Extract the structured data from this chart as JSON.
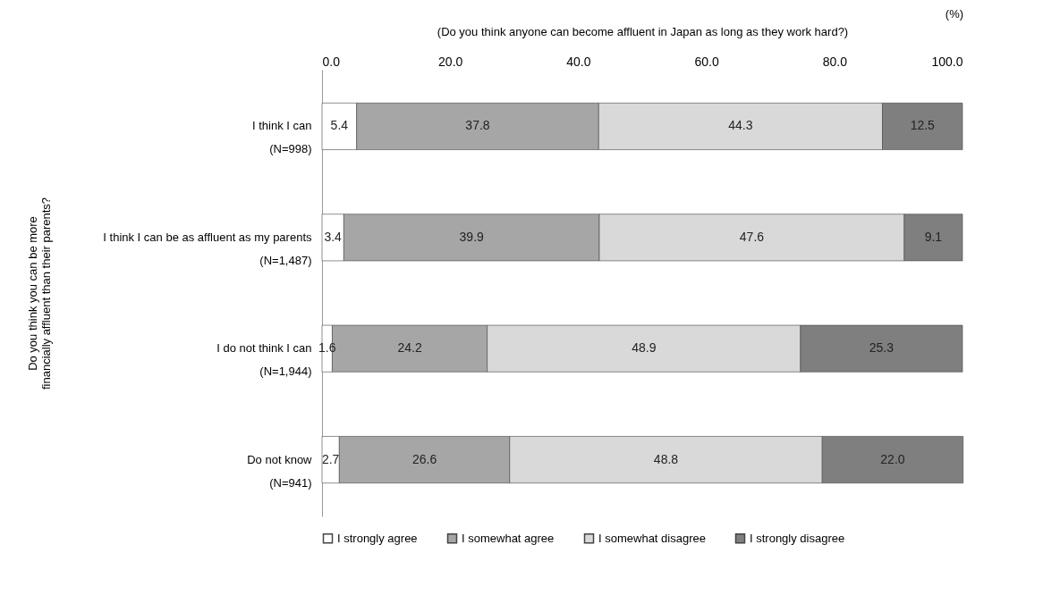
{
  "chart_data": {
    "type": "bar",
    "orientation": "horizontal",
    "stacked": true,
    "xlabel": "(Do you think anyone can become affluent in Japan as long as they work hard?)",
    "ylabel": "Do you think you can be more financially affluent than their parents?",
    "annotations": [
      "(%)"
    ],
    "categories": [
      "I think I can\n(N=998)",
      "I think I can be as affluent as my parents\n(N=1,487)",
      "I do not think I can\n(N=1,944)",
      "Do not know\n(N=941)"
    ],
    "series": [
      {
        "name": "I strongly agree",
        "color": "#ffffff",
        "values": [
          5.4,
          3.4,
          1.6,
          2.7
        ]
      },
      {
        "name": "I somewhat agree",
        "color": "#a6a6a6",
        "values": [
          37.8,
          39.9,
          24.2,
          26.6
        ]
      },
      {
        "name": "I somewhat disagree",
        "color": "#d9d9d9",
        "values": [
          44.3,
          47.6,
          48.9,
          48.8
        ]
      },
      {
        "name": "I strongly disagree",
        "color": "#7f7f7f",
        "values": [
          12.5,
          9.1,
          25.3,
          22.0
        ],
        "value_labels": [
          "12.5",
          "9.1",
          "25.3",
          "22.0"
        ]
      }
    ],
    "xlim": [
      0,
      100
    ],
    "xticks": [
      {
        "value": 0,
        "label": "0.0"
      },
      {
        "value": 20,
        "label": "20.0"
      },
      {
        "value": 40,
        "label": "40.0"
      },
      {
        "value": 60,
        "label": "60.0"
      },
      {
        "value": 80,
        "label": "80.0"
      },
      {
        "value": 100,
        "label": "100.0"
      }
    ],
    "data_labels": true,
    "legend": "bottom",
    "grid": false
  }
}
